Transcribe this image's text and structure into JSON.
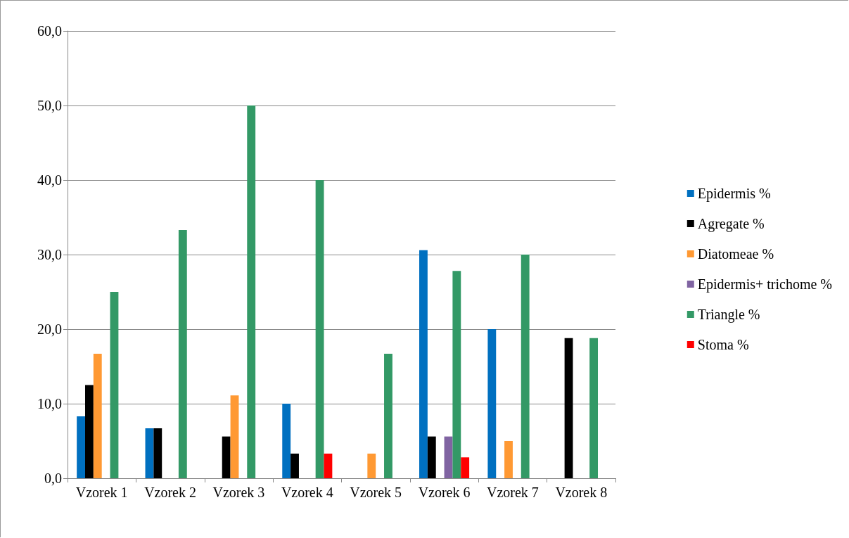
{
  "chart_data": {
    "type": "bar",
    "categories": [
      "Vzorek 1",
      "Vzorek 2",
      "Vzorek 3",
      "Vzorek 4",
      "Vzorek 5",
      "Vzorek 6",
      "Vzorek 7",
      "Vzorek 8"
    ],
    "series": [
      {
        "name": "Epidermis %",
        "color": "#0070c0",
        "values": [
          8.3,
          6.7,
          0,
          10.0,
          0,
          30.6,
          20.0,
          0
        ]
      },
      {
        "name": "Agregate %",
        "color": "#000000",
        "values": [
          12.5,
          6.7,
          5.6,
          3.3,
          0,
          5.6,
          0,
          18.8
        ]
      },
      {
        "name": "Diatomeae %",
        "color": "#ff9933",
        "values": [
          16.7,
          0,
          11.1,
          0,
          3.3,
          0,
          5.0,
          0
        ]
      },
      {
        "name": "Epidermis+ trichome %",
        "color": "#8064a2",
        "values": [
          0,
          0,
          0,
          0,
          0,
          5.6,
          0,
          0
        ]
      },
      {
        "name": "Triangle %",
        "color": "#339966",
        "values": [
          25.0,
          33.3,
          50.0,
          40.0,
          16.7,
          27.8,
          30.0,
          18.8
        ]
      },
      {
        "name": "Stoma %",
        "color": "#ff0000",
        "values": [
          0,
          0,
          0,
          3.3,
          0,
          2.8,
          0,
          0
        ]
      }
    ],
    "ylim": [
      0,
      60
    ],
    "yticks": [
      {
        "value": 0,
        "label": "0,0"
      },
      {
        "value": 10,
        "label": "10,0"
      },
      {
        "value": 20,
        "label": "20,0"
      },
      {
        "value": 30,
        "label": "30,0"
      },
      {
        "value": 40,
        "label": "40,0"
      },
      {
        "value": 50,
        "label": "50,0"
      },
      {
        "value": 60,
        "label": "60,0"
      }
    ],
    "grid": "y",
    "legend": "right"
  }
}
